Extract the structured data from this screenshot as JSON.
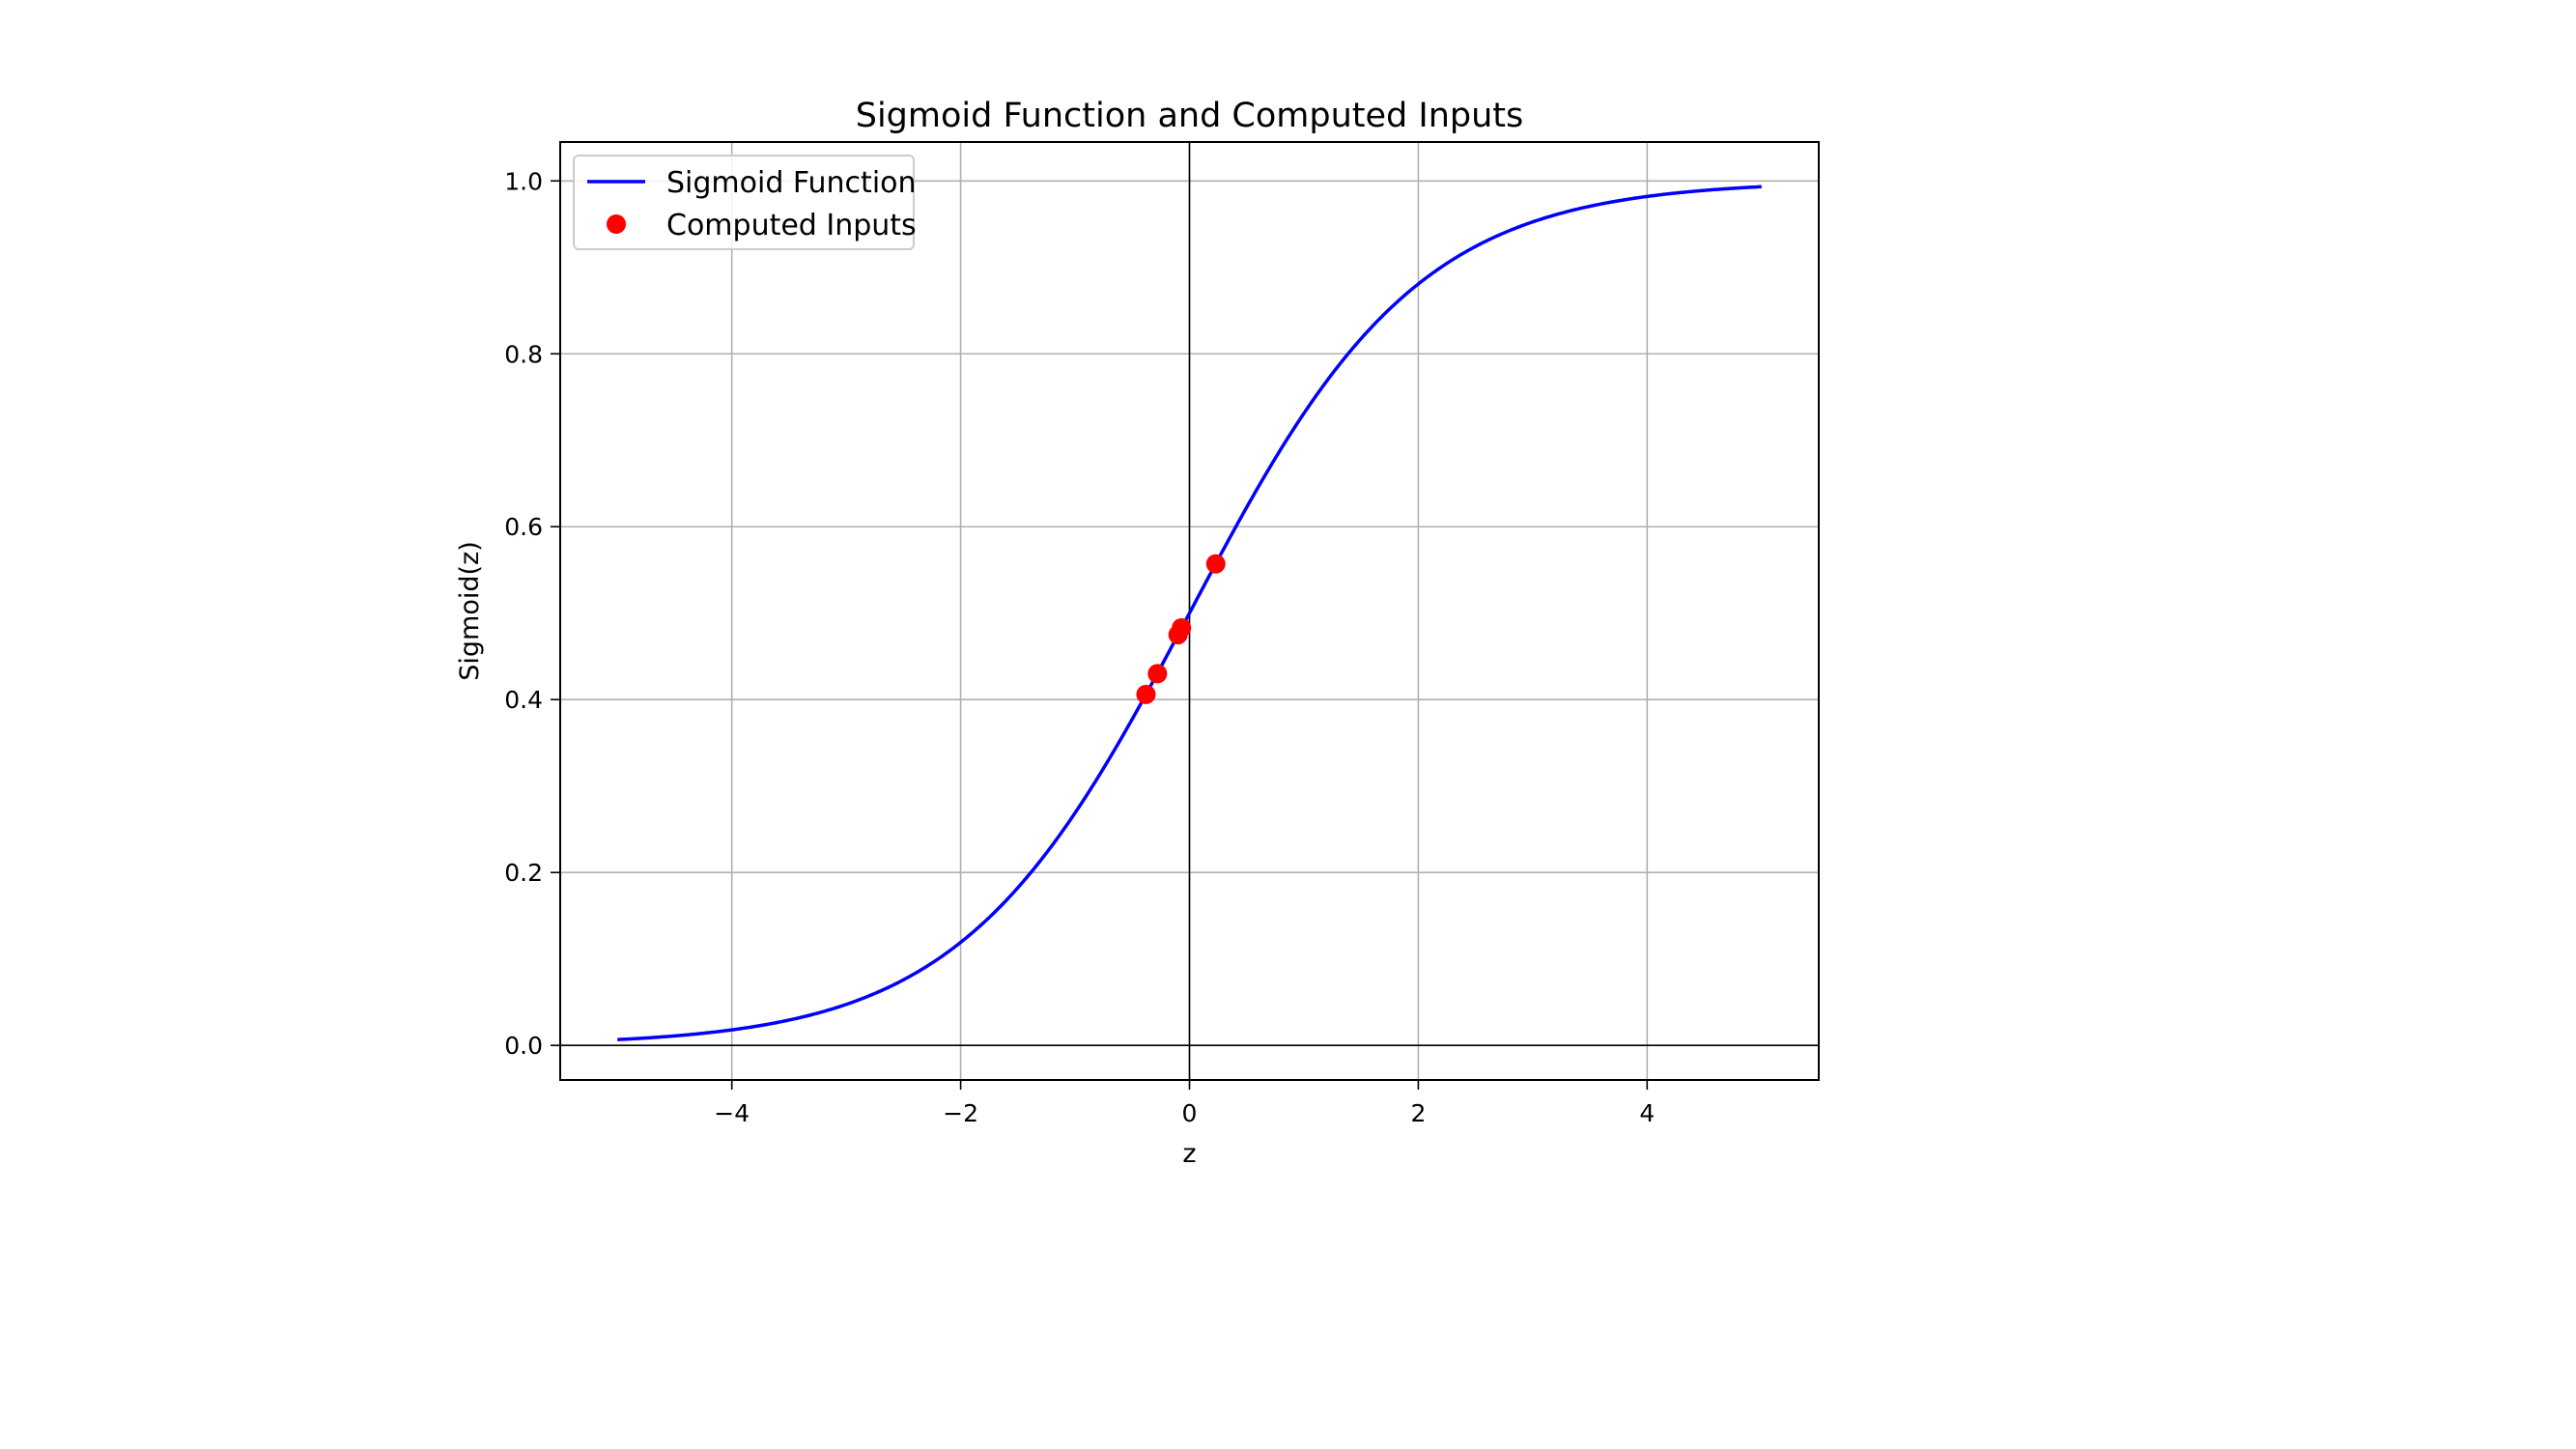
{
  "chart_data": {
    "type": "line",
    "title": "Sigmoid Function and Computed Inputs",
    "xlabel": "z",
    "ylabel": "Sigmoid(z)",
    "xlim": [
      -5.5,
      5.5
    ],
    "ylim": [
      -0.04,
      1.045
    ],
    "xticks": [
      -4,
      -2,
      0,
      2,
      4
    ],
    "xtick_labels": [
      "−4",
      "−2",
      "0",
      "2",
      "4"
    ],
    "yticks": [
      0.0,
      0.2,
      0.4,
      0.6,
      0.8,
      1.0
    ],
    "ytick_labels": [
      "0.0",
      "0.2",
      "0.4",
      "0.6",
      "0.8",
      "1.0"
    ],
    "grid": true,
    "reference_lines": {
      "x": 0,
      "y": 0
    },
    "legend_position": "top-left",
    "series": [
      {
        "name": "Sigmoid Function",
        "kind": "line",
        "color": "#0000ff",
        "function": "sigmoid",
        "x_range": [
          -5,
          5
        ]
      },
      {
        "name": "Computed Inputs",
        "kind": "scatter",
        "color": "#ff0000",
        "x": [
          -0.38,
          -0.28,
          -0.1,
          -0.07,
          0.23
        ],
        "y": [
          0.406,
          0.43,
          0.475,
          0.483,
          0.557
        ]
      }
    ]
  }
}
